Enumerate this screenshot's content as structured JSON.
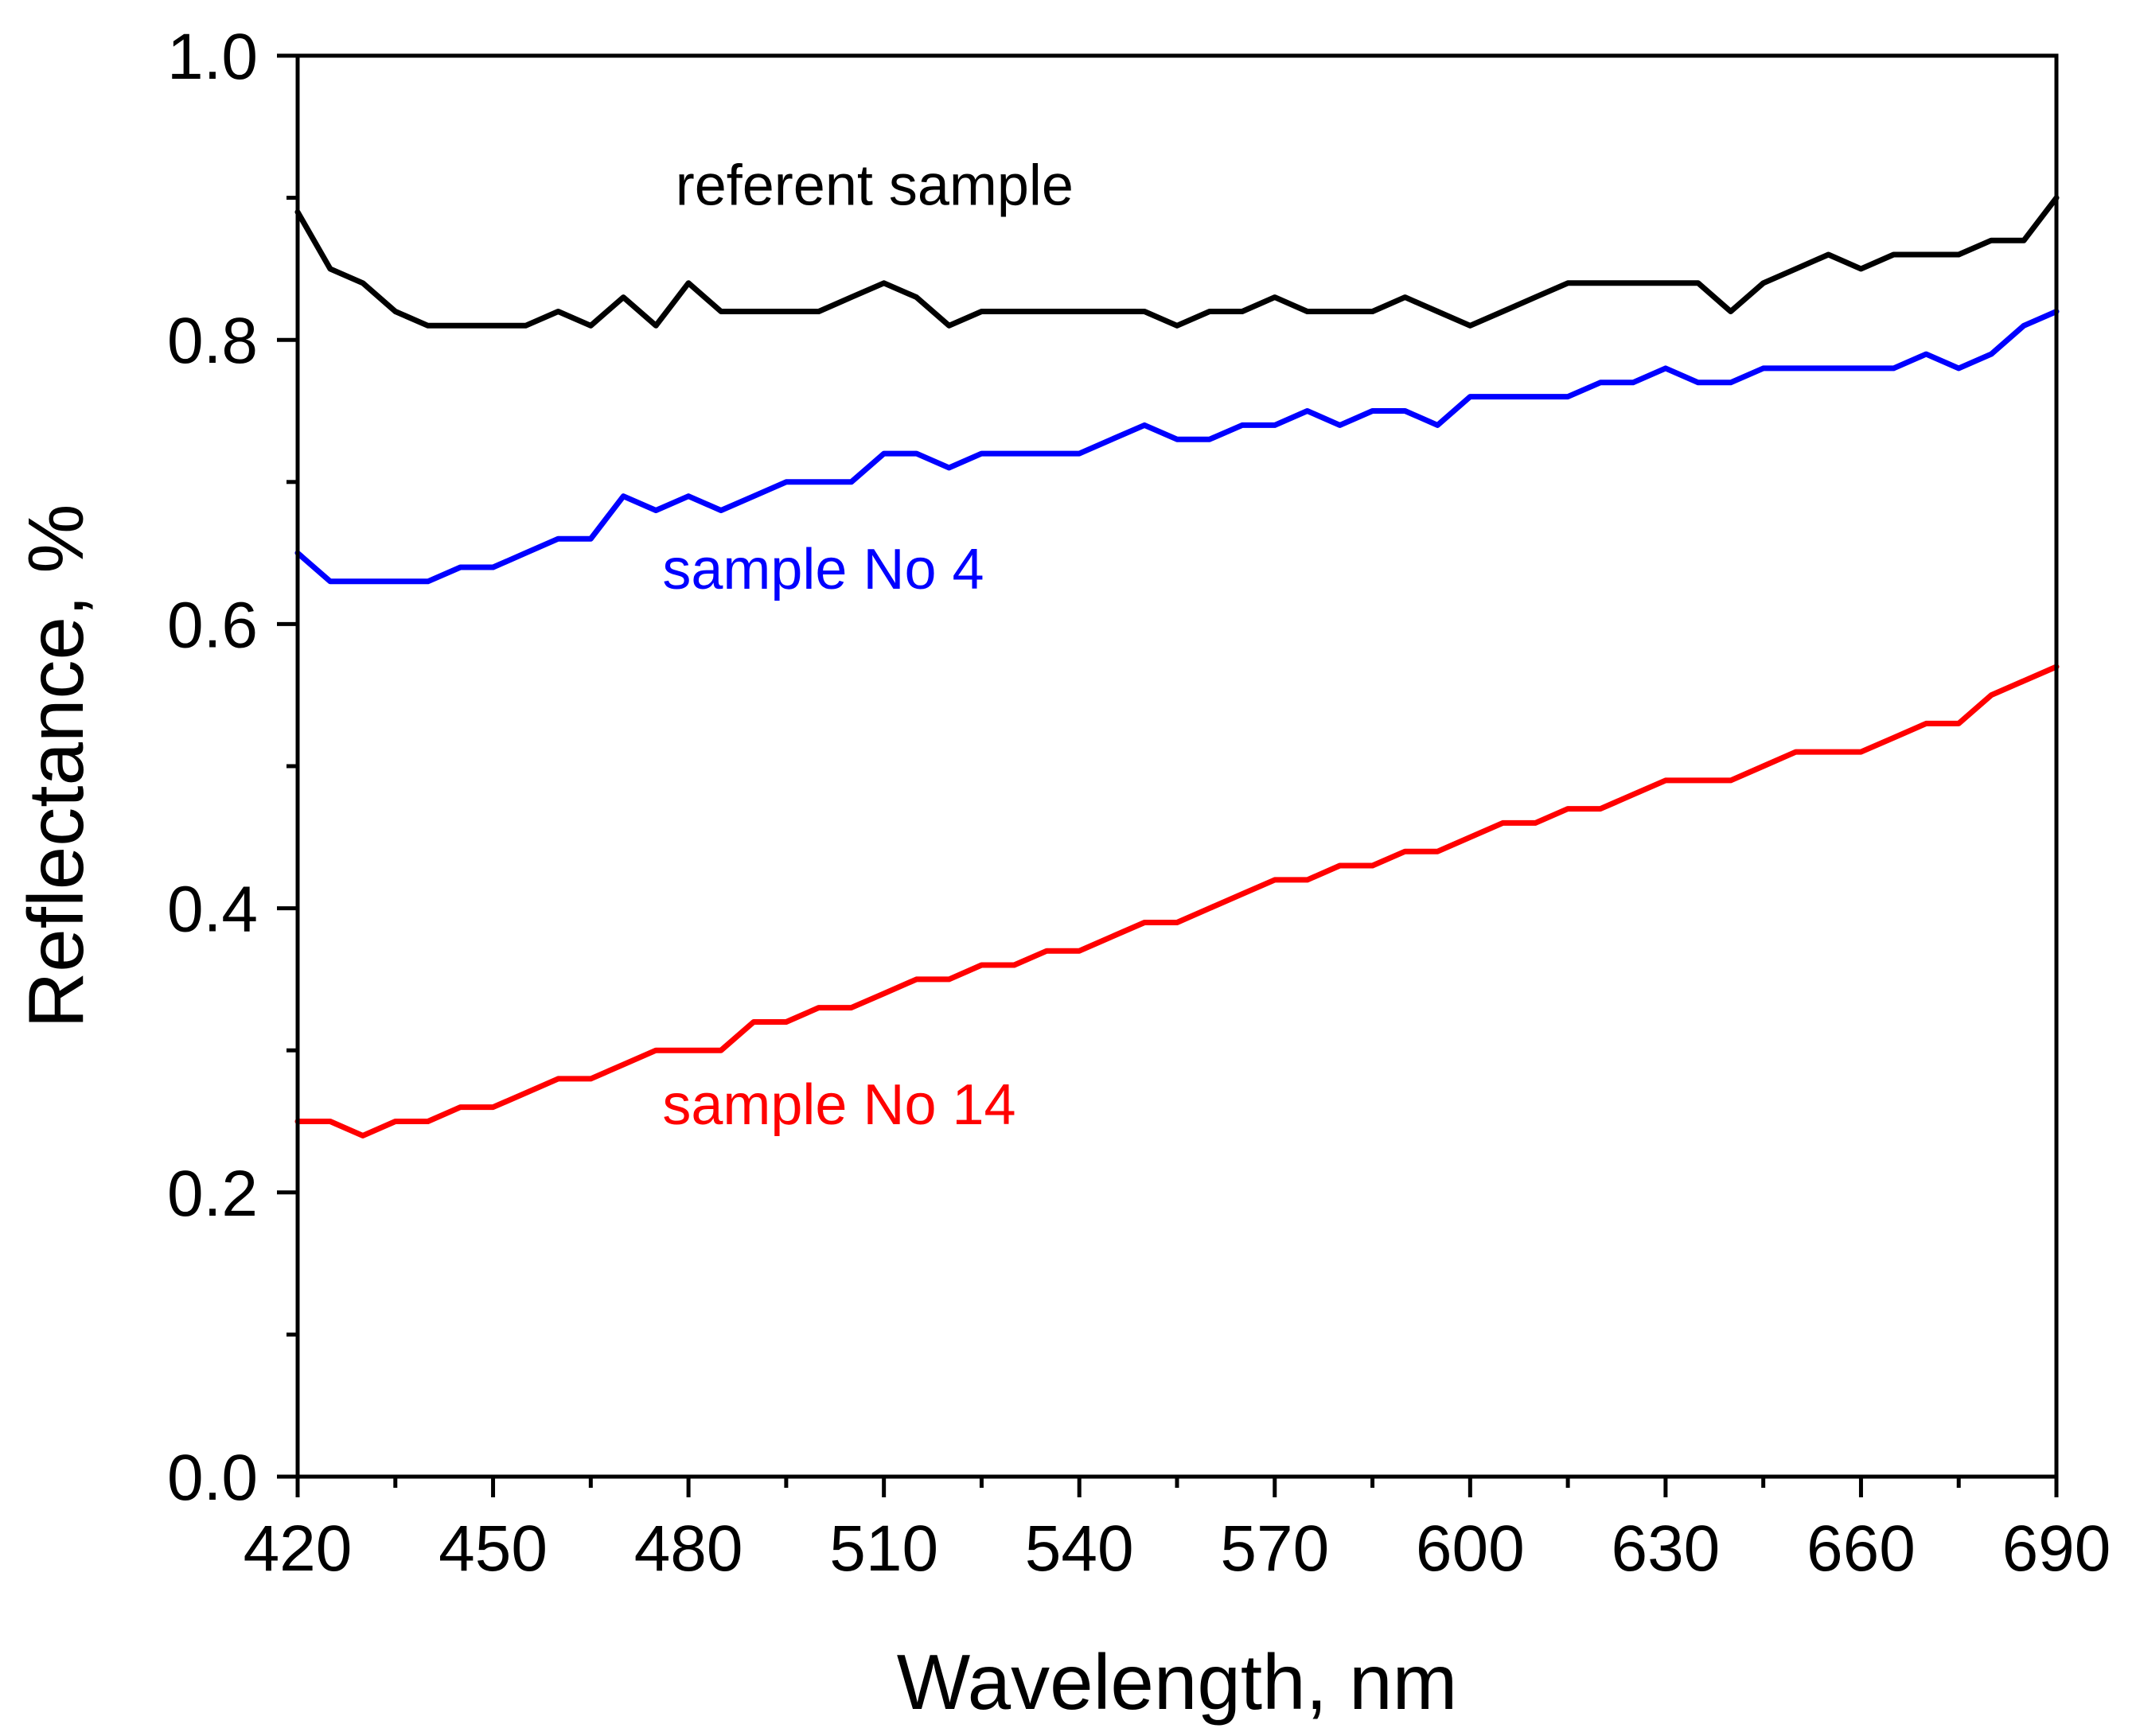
{
  "chart_data": {
    "type": "line",
    "title": "",
    "xlabel": "Wavelength, nm",
    "ylabel": "Reflectance, %",
    "xlim": [
      420,
      690
    ],
    "ylim": [
      0.0,
      1.0
    ],
    "x_major_ticks": [
      420,
      450,
      480,
      510,
      540,
      570,
      600,
      630,
      660,
      690
    ],
    "x_tick_labels": [
      "420",
      "450",
      "480",
      "510",
      "540",
      "570",
      "600",
      "630",
      "660",
      "690"
    ],
    "x_minor_step": 15,
    "y_major_ticks": [
      0.0,
      0.2,
      0.4,
      0.6,
      0.8,
      1.0
    ],
    "y_tick_labels": [
      "0.0",
      "0.2",
      "0.4",
      "0.6",
      "0.8",
      "1.0"
    ],
    "y_minor_step": 0.1,
    "grid": false,
    "x": [
      420,
      425,
      430,
      435,
      440,
      445,
      450,
      455,
      460,
      465,
      470,
      475,
      480,
      485,
      490,
      495,
      500,
      505,
      510,
      515,
      520,
      525,
      530,
      535,
      540,
      545,
      550,
      555,
      560,
      565,
      570,
      575,
      580,
      585,
      590,
      595,
      600,
      605,
      610,
      615,
      620,
      625,
      630,
      635,
      640,
      645,
      650,
      655,
      660,
      665,
      670,
      675,
      680,
      685,
      690
    ],
    "series": [
      {
        "name": "referent sample",
        "color": "#000000",
        "values": [
          0.89,
          0.85,
          0.84,
          0.82,
          0.81,
          0.81,
          0.81,
          0.81,
          0.82,
          0.81,
          0.83,
          0.81,
          0.84,
          0.82,
          0.82,
          0.82,
          0.82,
          0.83,
          0.84,
          0.83,
          0.81,
          0.82,
          0.82,
          0.82,
          0.82,
          0.82,
          0.82,
          0.81,
          0.82,
          0.82,
          0.83,
          0.82,
          0.82,
          0.82,
          0.83,
          0.82,
          0.81,
          0.82,
          0.83,
          0.84,
          0.84,
          0.84,
          0.84,
          0.84,
          0.82,
          0.84,
          0.85,
          0.86,
          0.85,
          0.86,
          0.86,
          0.86,
          0.87,
          0.87,
          0.9
        ]
      },
      {
        "name": "sample No 4",
        "color": "#0000ff",
        "values": [
          0.65,
          0.63,
          0.63,
          0.63,
          0.63,
          0.64,
          0.64,
          0.65,
          0.66,
          0.66,
          0.69,
          0.68,
          0.69,
          0.68,
          0.69,
          0.7,
          0.7,
          0.7,
          0.72,
          0.72,
          0.71,
          0.72,
          0.72,
          0.72,
          0.72,
          0.73,
          0.74,
          0.73,
          0.73,
          0.74,
          0.74,
          0.75,
          0.74,
          0.75,
          0.75,
          0.74,
          0.76,
          0.76,
          0.76,
          0.76,
          0.77,
          0.77,
          0.78,
          0.77,
          0.77,
          0.78,
          0.78,
          0.78,
          0.78,
          0.78,
          0.79,
          0.78,
          0.79,
          0.81,
          0.82
        ]
      },
      {
        "name": "sample No 14",
        "color": "#ff0000",
        "values": [
          0.25,
          0.25,
          0.24,
          0.25,
          0.25,
          0.26,
          0.26,
          0.27,
          0.28,
          0.28,
          0.29,
          0.3,
          0.3,
          0.3,
          0.32,
          0.32,
          0.33,
          0.33,
          0.34,
          0.35,
          0.35,
          0.36,
          0.36,
          0.37,
          0.37,
          0.38,
          0.39,
          0.39,
          0.4,
          0.41,
          0.42,
          0.42,
          0.43,
          0.43,
          0.44,
          0.44,
          0.45,
          0.46,
          0.46,
          0.47,
          0.47,
          0.48,
          0.49,
          0.49,
          0.49,
          0.5,
          0.51,
          0.51,
          0.51,
          0.52,
          0.53,
          0.53,
          0.55,
          0.56,
          0.57
        ]
      }
    ],
    "annotations": [
      {
        "text": "referent sample",
        "color": "#000000",
        "x": 478,
        "y": 0.895
      },
      {
        "text": "sample No 4",
        "color": "#0000ff",
        "x": 476,
        "y": 0.625
      },
      {
        "text": "sample No 14",
        "color": "#ff0000",
        "x": 476,
        "y": 0.248
      }
    ]
  }
}
